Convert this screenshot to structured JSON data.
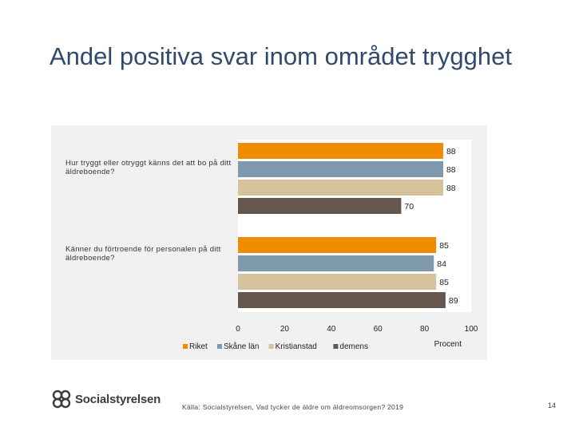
{
  "slide": {
    "title": "Andel positiva svar inom området trygghet",
    "source": "Källa: Socialstyrelsen, Vad tycker de äldre om äldreomsorgen? 2019",
    "page_number": "14",
    "logo_text": "Socialstyrelsen"
  },
  "chart_data": {
    "type": "bar",
    "orientation": "horizontal",
    "categories": [
      "Hur tryggt eller otryggt känns det att bo på ditt äldreboende?",
      "Känner du förtroende för personalen på ditt äldreboende?"
    ],
    "series": [
      {
        "name": "Riket",
        "color": "#f08c00",
        "values": [
          88,
          85
        ]
      },
      {
        "name": "Skåne län",
        "color": "#7f9aad",
        "values": [
          88,
          84
        ]
      },
      {
        "name": "Kristianstad",
        "color": "#d5c29a",
        "values": [
          88,
          85
        ]
      },
      {
        "name": "demens",
        "color": "#65574b",
        "values": [
          70,
          89
        ]
      }
    ],
    "xlabel": "Procent",
    "xlim": [
      0,
      100
    ],
    "xticks": [
      0,
      20,
      40,
      60,
      80,
      100
    ],
    "legend_position": "bottom",
    "grid": false
  }
}
